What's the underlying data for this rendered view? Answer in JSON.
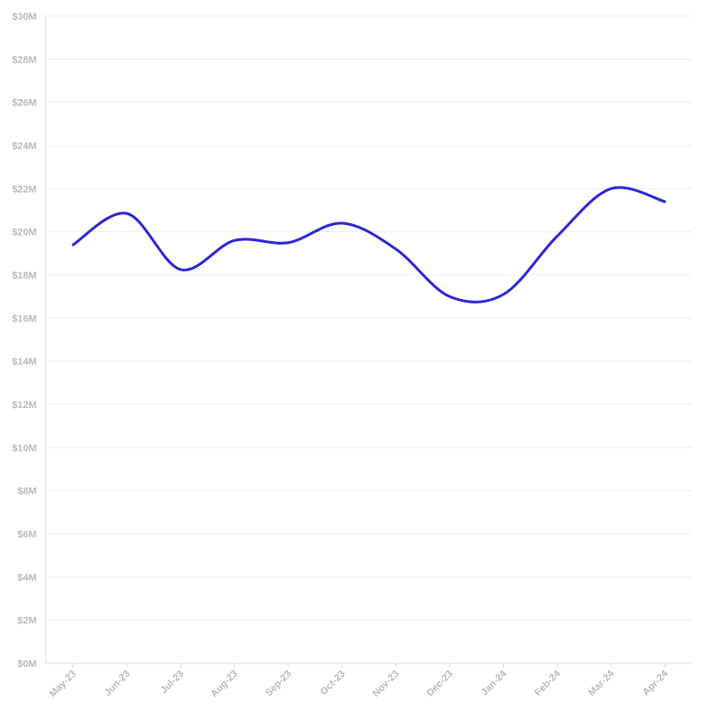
{
  "chart_data": {
    "type": "line",
    "title": "",
    "xlabel": "",
    "ylabel": "",
    "categories": [
      "May-23",
      "Jun-23",
      "Jul-23",
      "Aug-23",
      "Sep-23",
      "Oct-23",
      "Nov-23",
      "Dec-23",
      "Jan-24",
      "Feb-24",
      "Mar-24",
      "Apr-24"
    ],
    "series": [
      {
        "values": [
          19.4,
          20.85,
          18.25,
          19.6,
          19.5,
          20.4,
          19.2,
          17.0,
          17.1,
          19.8,
          22.0,
          21.4
        ],
        "color": "#2b25d6"
      }
    ],
    "yticks": [
      0,
      2,
      4,
      6,
      8,
      10,
      12,
      14,
      16,
      18,
      20,
      22,
      24,
      26,
      28,
      30
    ],
    "ytick_labels": [
      "$0M",
      "$2M",
      "$4M",
      "$6M",
      "$8M",
      "$10M",
      "$12M",
      "$14M",
      "$16M",
      "$18M",
      "$20M",
      "$22M",
      "$24M",
      "$26M",
      "$28M",
      "$30M"
    ],
    "ylim": [
      0,
      30
    ],
    "grid": true,
    "legend": "none"
  }
}
